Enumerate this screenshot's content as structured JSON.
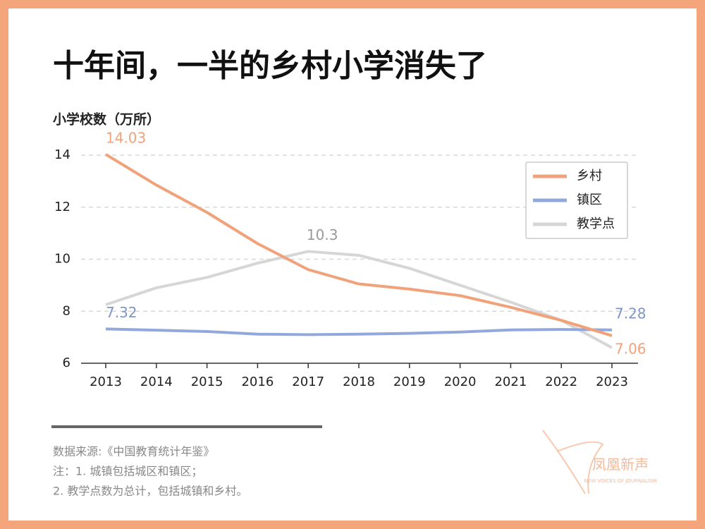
{
  "chart_data": {
    "type": "line",
    "title": "十年间，一半的乡村小学消失了",
    "y_label": "小学校数（万所）",
    "categories": [
      "2013",
      "2014",
      "2015",
      "2016",
      "2017",
      "2018",
      "2019",
      "2020",
      "2021",
      "2022",
      "2023"
    ],
    "series": [
      {
        "name": "乡村",
        "color": "#f0a27a",
        "label_color": "#f0a27a",
        "values": [
          14.03,
          12.85,
          11.8,
          10.6,
          9.6,
          9.05,
          8.85,
          8.6,
          8.15,
          7.65,
          7.06
        ],
        "value_labels": [
          "14.03",
          null,
          null,
          null,
          null,
          null,
          null,
          null,
          null,
          null,
          "7.06"
        ]
      },
      {
        "name": "镇区",
        "color": "#92a8dc",
        "label_color": "#7f95c8",
        "values": [
          7.32,
          7.27,
          7.22,
          7.12,
          7.1,
          7.12,
          7.15,
          7.2,
          7.28,
          7.3,
          7.28
        ],
        "value_labels": [
          "7.32",
          null,
          null,
          null,
          null,
          null,
          null,
          null,
          null,
          null,
          "7.28"
        ]
      },
      {
        "name": "教学点",
        "color": "#d6d6d6",
        "label_color": "#999999",
        "values": [
          8.25,
          8.9,
          9.3,
          9.85,
          10.3,
          10.15,
          9.65,
          9.0,
          8.35,
          7.65,
          6.6
        ],
        "value_labels": [
          null,
          null,
          null,
          null,
          "10.3",
          null,
          null,
          null,
          null,
          null,
          null
        ]
      }
    ],
    "ylim": [
      6,
      14
    ],
    "yticks": [
      6,
      8,
      10,
      12,
      14
    ],
    "grid": true,
    "legend": "upper right"
  },
  "footer": {
    "source": "数据来源:《中国教育统计年鉴》",
    "note1": "注：1. 城镇包括城区和镇区；",
    "note2": "2. 教学点数为总计，包括城镇和乡村。",
    "logo": "凤凰新声",
    "logo_sub": "NEW VOICES OF JOURNALISM"
  }
}
